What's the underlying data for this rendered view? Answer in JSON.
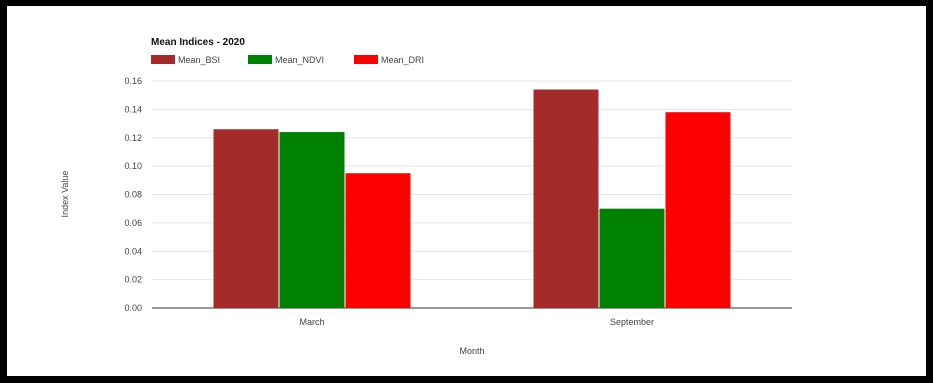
{
  "chart_data": {
    "type": "bar",
    "title": "Mean Indices - 2020",
    "xlabel": "Month",
    "ylabel": "Index Value",
    "categories": [
      "March",
      "September"
    ],
    "series": [
      {
        "name": "Mean_BSI",
        "color": "#a52a2a",
        "values": [
          0.126,
          0.154
        ]
      },
      {
        "name": "Mean_NDVI",
        "color": "#008000",
        "values": [
          0.124,
          0.07
        ]
      },
      {
        "name": "Mean_DRI",
        "color": "#ff0000",
        "values": [
          0.095,
          0.138
        ]
      }
    ],
    "ylim": [
      0,
      0.16
    ],
    "yticks": [
      "0.00",
      "0.02",
      "0.04",
      "0.06",
      "0.08",
      "0.10",
      "0.12",
      "0.14",
      "0.16"
    ],
    "grid": true,
    "legend": "top-left"
  }
}
